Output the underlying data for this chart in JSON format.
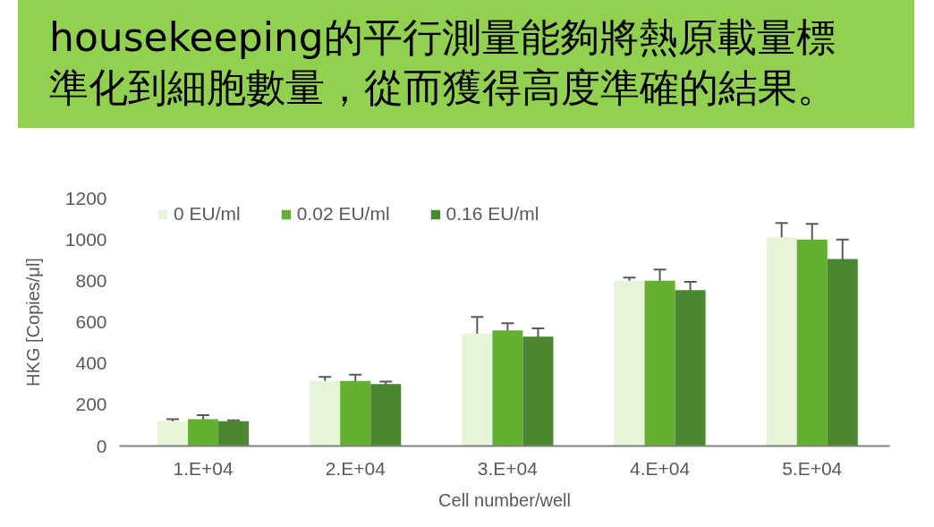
{
  "chart_data": {
    "type": "bar",
    "title": "housekeeping的平行測量能夠將熱原載量標準化到細胞數量，從而獲得高度準確的結果。",
    "xlabel": "Cell number/well",
    "ylabel": "HKG [Copies/μl]",
    "categories": [
      "1.E+04",
      "2.E+04",
      "3.E+04",
      "4.E+04",
      "5.E+04"
    ],
    "series": [
      {
        "name": "0 EU/ml",
        "color": "#e6f4d7",
        "values": [
          120,
          315,
          545,
          800,
          1010
        ],
        "errors": [
          10,
          20,
          80,
          15,
          70
        ]
      },
      {
        "name": "0.02 EU/ml",
        "color": "#63b030",
        "values": [
          130,
          315,
          560,
          800,
          1000
        ],
        "errors": [
          20,
          30,
          35,
          55,
          75
        ]
      },
      {
        "name": "0.16 EU/ml",
        "color": "#4b8631",
        "values": [
          120,
          300,
          530,
          755,
          905
        ],
        "errors": [
          5,
          12,
          40,
          40,
          95
        ]
      }
    ],
    "ylim": [
      0,
      1200
    ],
    "yticks": [
      0,
      200,
      400,
      600,
      800,
      1000,
      1200
    ],
    "grid": false,
    "legend": "top left"
  }
}
